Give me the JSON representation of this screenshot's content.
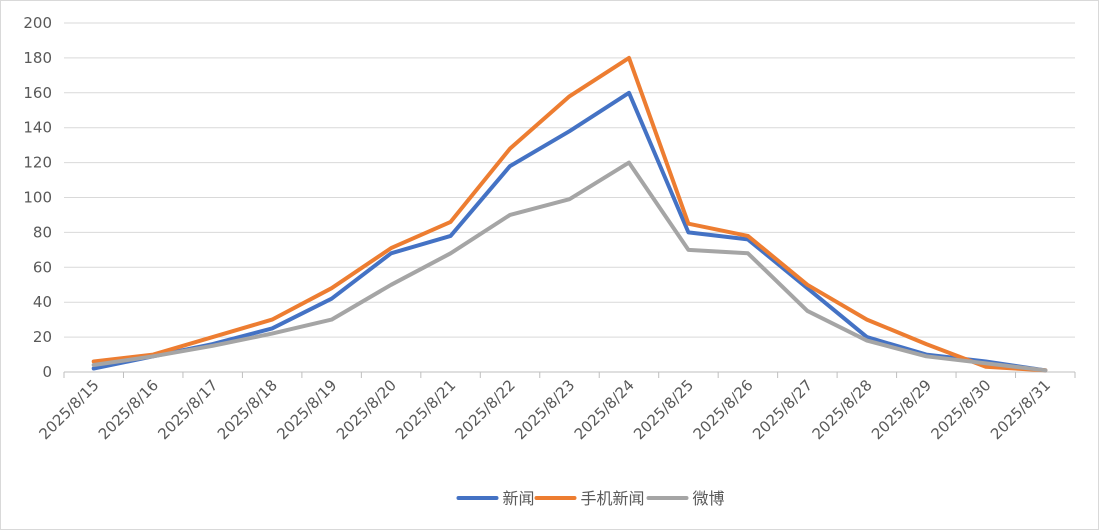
{
  "chart_data": {
    "type": "line",
    "title": "",
    "xlabel": "",
    "ylabel": "",
    "ylim": [
      0,
      200
    ],
    "yticks": [
      0,
      20,
      40,
      60,
      80,
      100,
      120,
      140,
      160,
      180,
      200
    ],
    "grid": true,
    "legend_position": "bottom",
    "categories": [
      "2025/8/15",
      "2025/8/16",
      "2025/8/17",
      "2025/8/18",
      "2025/8/19",
      "2025/8/20",
      "2025/8/21",
      "2025/8/22",
      "2025/8/23",
      "2025/8/24",
      "2025/8/25",
      "2025/8/26",
      "2025/8/27",
      "2025/8/28",
      "2025/8/29",
      "2025/8/30",
      "2025/8/31"
    ],
    "series": [
      {
        "name": "新闻",
        "color": "#4472C4",
        "values": [
          2,
          9,
          16,
          25,
          42,
          68,
          78,
          118,
          138,
          160,
          80,
          76,
          48,
          20,
          10,
          6,
          1
        ]
      },
      {
        "name": "手机新闻",
        "color": "#ED7D31",
        "values": [
          6,
          10,
          20,
          30,
          48,
          71,
          86,
          128,
          158,
          180,
          85,
          78,
          50,
          30,
          16,
          3,
          1
        ]
      },
      {
        "name": "微博",
        "color": "#A5A5A5",
        "values": [
          4,
          9,
          15,
          22,
          30,
          50,
          68,
          90,
          99,
          120,
          70,
          68,
          35,
          18,
          9,
          5,
          1
        ]
      }
    ]
  }
}
